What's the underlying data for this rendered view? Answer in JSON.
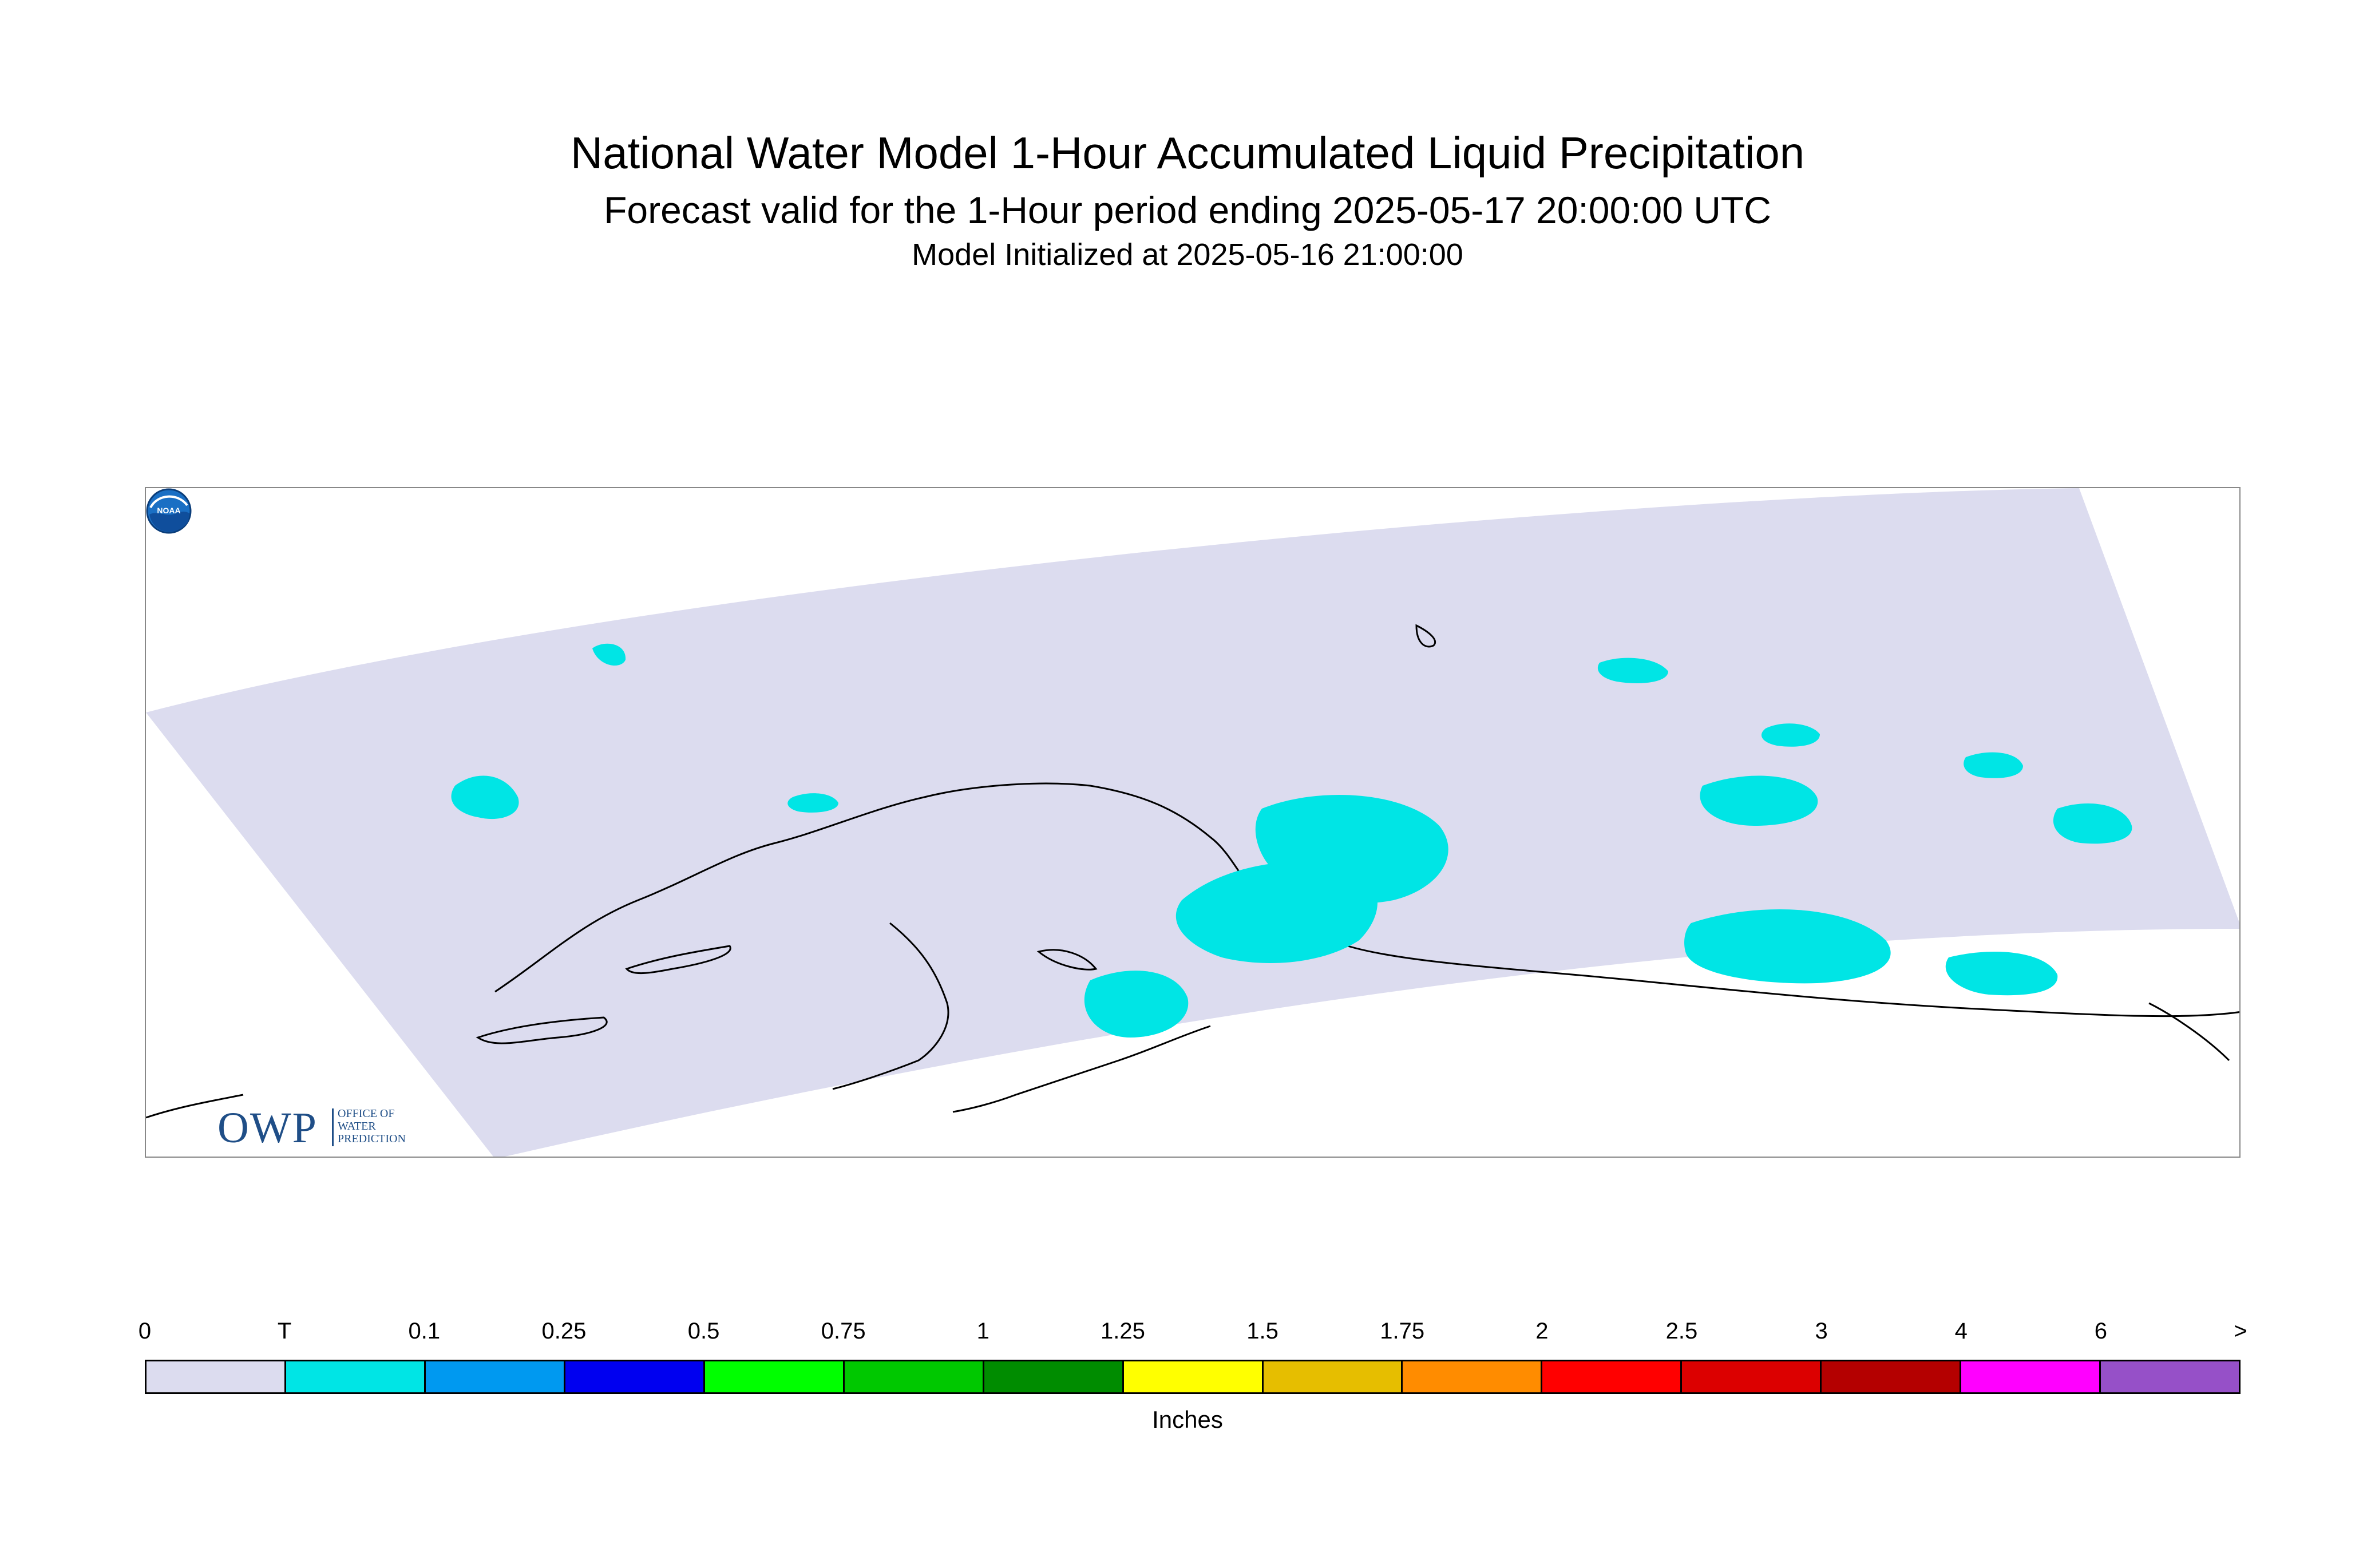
{
  "header": {
    "title": "National Water Model 1-Hour Accumulated Liquid Precipitation",
    "subtitle": "Forecast valid for the 1-Hour period ending 2025-05-17 20:00:00 UTC",
    "initialized": "Model Initialized at 2025-05-16 21:00:00"
  },
  "map": {
    "region_fill_color": "#dcdcef",
    "precip_trace_color": "#00e5e5",
    "coastline_color": "#000000"
  },
  "logos": {
    "owp_letters": "OWP",
    "owp_line1": "OFFICE OF",
    "owp_line2": "WATER",
    "owp_line3": "PREDICTION",
    "noaa_text": "NOAA"
  },
  "legend": {
    "labels": [
      "0",
      "T",
      "0.1",
      "0.25",
      "0.5",
      "0.75",
      "1",
      "1.25",
      "1.5",
      "1.75",
      "2",
      "2.5",
      "3",
      "4",
      "6",
      ">"
    ],
    "colors": [
      "#dcdcef",
      "#00e5e5",
      "#0099f0",
      "#0000f0",
      "#00ff00",
      "#00c800",
      "#008c00",
      "#ffff00",
      "#e6be00",
      "#ff8c00",
      "#ff0000",
      "#dc0000",
      "#b40000",
      "#ff00ff",
      "#9650c8"
    ],
    "units": "Inches"
  }
}
